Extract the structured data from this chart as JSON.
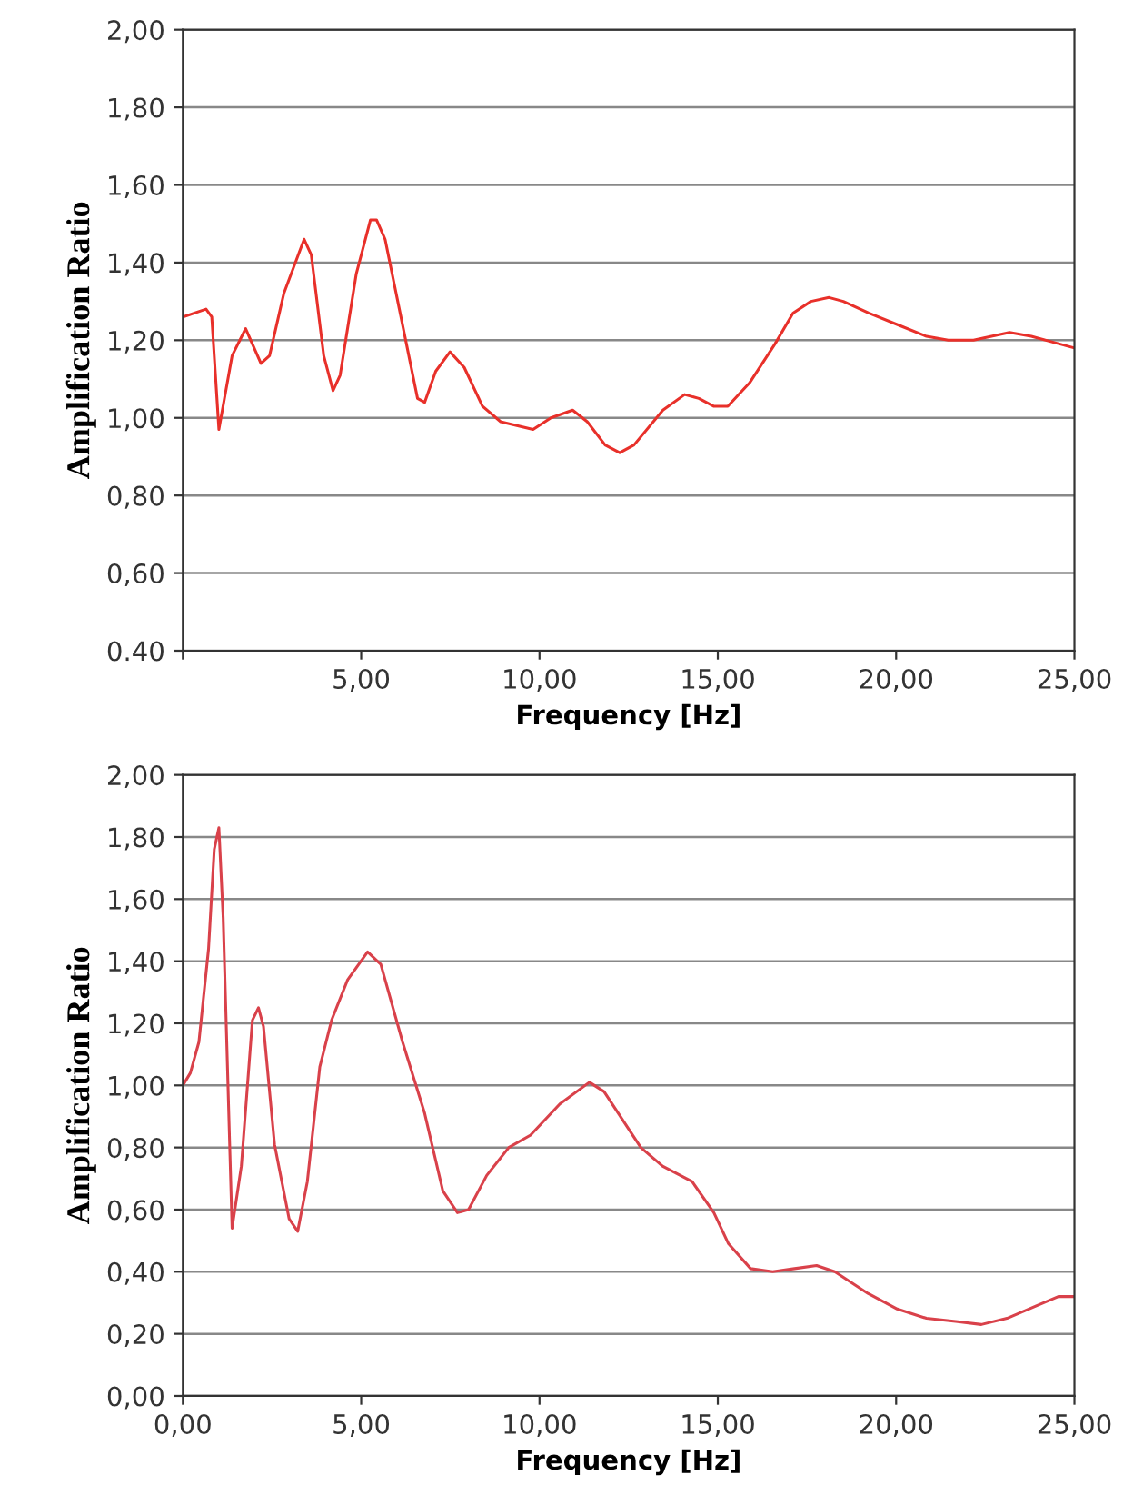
{
  "chart_data": [
    {
      "type": "line",
      "xlabel": "Frequency [Hz]",
      "ylabel": "Amplification Ratio",
      "grid": "y",
      "marker": "none",
      "line_style": "solid",
      "xlim": [
        0,
        25
      ],
      "xticks": [
        {
          "value": 0,
          "label": null
        },
        {
          "value": 5,
          "label": "5,00"
        },
        {
          "value": 10,
          "label": "10,00"
        },
        {
          "value": 15,
          "label": "15,00"
        },
        {
          "value": 20,
          "label": "20,00"
        },
        {
          "value": 25,
          "label": "25,00"
        }
      ],
      "ylim": [
        0.4,
        2.0
      ],
      "yticks": [
        {
          "value": 0.4,
          "label": "0.40"
        },
        {
          "value": 0.6,
          "label": "0,60"
        },
        {
          "value": 0.8,
          "label": "0,80"
        },
        {
          "value": 1.0,
          "label": "1,00"
        },
        {
          "value": 1.2,
          "label": "1,20"
        },
        {
          "value": 1.4,
          "label": "1,40"
        },
        {
          "value": 1.6,
          "label": "1,60"
        },
        {
          "value": 1.8,
          "label": "1,80"
        },
        {
          "value": 2.0,
          "label": "2,00"
        }
      ],
      "series": [
        {
          "color": "#e8302a",
          "x": [
            0,
            0.65,
            0.81,
            1.01,
            1.38,
            1.76,
            2.19,
            2.43,
            2.83,
            3.4,
            3.6,
            3.95,
            4.21,
            4.41,
            4.86,
            5.26,
            5.43,
            5.67,
            6.07,
            6.58,
            6.78,
            7.09,
            7.49,
            7.89,
            8.4,
            8.91,
            9.82,
            10.32,
            10.93,
            11.34,
            11.84,
            12.25,
            12.65,
            13.46,
            14.07,
            14.47,
            14.88,
            15.28,
            15.89,
            16.6,
            17.11,
            17.61,
            18.12,
            18.52,
            19.23,
            20.04,
            20.85,
            21.46,
            22.17,
            23.18,
            23.79,
            24.6,
            25
          ],
          "values": [
            1.26,
            1.28,
            1.26,
            0.97,
            1.16,
            1.23,
            1.14,
            1.16,
            1.32,
            1.46,
            1.42,
            1.16,
            1.07,
            1.11,
            1.37,
            1.51,
            1.51,
            1.46,
            1.28,
            1.05,
            1.04,
            1.12,
            1.17,
            1.13,
            1.03,
            0.99,
            0.97,
            1.0,
            1.02,
            0.99,
            0.93,
            0.91,
            0.93,
            1.02,
            1.06,
            1.05,
            1.03,
            1.03,
            1.09,
            1.19,
            1.27,
            1.3,
            1.31,
            1.3,
            1.27,
            1.24,
            1.21,
            1.2,
            1.2,
            1.22,
            1.21,
            1.19,
            1.18
          ]
        }
      ]
    },
    {
      "type": "line",
      "xlabel": "Frequency [Hz]",
      "ylabel": "Amplification Ratio",
      "grid": "y",
      "marker": "none",
      "line_style": "solid",
      "xlim": [
        0,
        25
      ],
      "xticks": [
        {
          "value": 0,
          "label": "0,00"
        },
        {
          "value": 5,
          "label": "5,00"
        },
        {
          "value": 10,
          "label": "10,00"
        },
        {
          "value": 15,
          "label": "15,00"
        },
        {
          "value": 20,
          "label": "20,00"
        },
        {
          "value": 25,
          "label": "25,00"
        }
      ],
      "ylim": [
        0,
        2.0
      ],
      "yticks": [
        {
          "value": 0,
          "label": "0,00"
        },
        {
          "value": 0.2,
          "label": "0,20"
        },
        {
          "value": 0.4,
          "label": "0,40"
        },
        {
          "value": 0.6,
          "label": "0,60"
        },
        {
          "value": 0.8,
          "label": "0,80"
        },
        {
          "value": 1.0,
          "label": "1,00"
        },
        {
          "value": 1.2,
          "label": "1,20"
        },
        {
          "value": 1.4,
          "label": "1,40"
        },
        {
          "value": 1.6,
          "label": "1,60"
        },
        {
          "value": 1.8,
          "label": "1,80"
        },
        {
          "value": 2.0,
          "label": "2,00"
        }
      ],
      "series": [
        {
          "color": "#d9414a",
          "x": [
            0,
            0.21,
            0.45,
            0.72,
            0.88,
            1.01,
            1.13,
            1.38,
            1.64,
            1.95,
            2.12,
            2.26,
            2.57,
            2.98,
            3.22,
            3.49,
            3.84,
            4.17,
            4.62,
            5.18,
            5.55,
            6.16,
            6.78,
            7.29,
            7.7,
            8.01,
            8.52,
            9.14,
            9.75,
            10.57,
            11.4,
            11.81,
            12.84,
            13.45,
            14.28,
            14.89,
            15.3,
            15.92,
            16.54,
            17.15,
            17.77,
            18.28,
            19.21,
            20.03,
            20.85,
            21.67,
            22.39,
            23.11,
            23.93,
            24.55,
            25
          ],
          "values": [
            1.0,
            1.04,
            1.14,
            1.44,
            1.76,
            1.83,
            1.54,
            0.54,
            0.74,
            1.21,
            1.25,
            1.19,
            0.81,
            0.57,
            0.53,
            0.69,
            1.06,
            1.21,
            1.34,
            1.43,
            1.39,
            1.14,
            0.91,
            0.66,
            0.59,
            0.6,
            0.71,
            0.8,
            0.84,
            0.94,
            1.01,
            0.98,
            0.8,
            0.74,
            0.69,
            0.59,
            0.49,
            0.41,
            0.4,
            0.41,
            0.42,
            0.4,
            0.33,
            0.28,
            0.25,
            0.24,
            0.23,
            0.25,
            0.29,
            0.32,
            0.32
          ]
        }
      ]
    }
  ]
}
